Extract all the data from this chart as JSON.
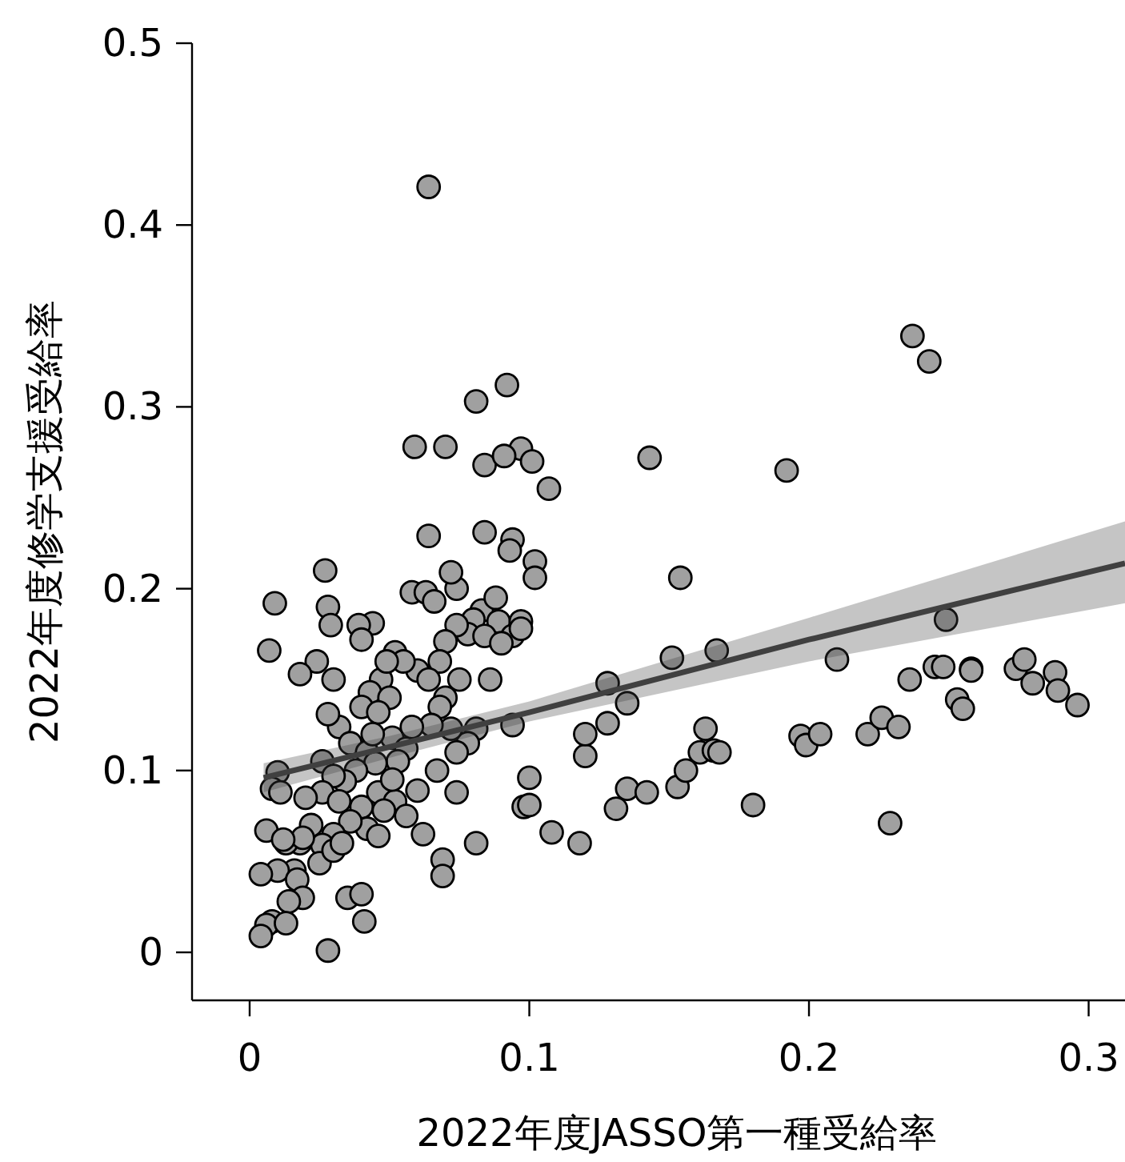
{
  "chart_data": {
    "type": "scatter",
    "xlabel": "2022年度JASSO第一種受給率",
    "ylabel": "2022年度修学支援受給率",
    "xlim": [
      -0.0206,
      0.313
    ],
    "ylim": [
      -0.0264,
      0.5
    ],
    "xticks": [
      0,
      0.1,
      0.2,
      0.3
    ],
    "yticks": [
      0,
      0.1,
      0.2,
      0.3,
      0.4,
      0.5
    ],
    "grid": false,
    "series": [
      {
        "marker": "circle",
        "color": "#a0a0a0",
        "x": [
          0.107,
          0.143,
          0.192,
          0.237,
          0.243,
          0.154,
          0.151,
          0.167,
          0.1,
          0.098,
          0.1,
          0.108,
          0.118,
          0.12,
          0.12,
          0.128,
          0.128,
          0.131,
          0.135,
          0.135,
          0.142,
          0.153,
          0.156,
          0.161,
          0.163,
          0.166,
          0.168,
          0.18,
          0.197,
          0.199,
          0.204,
          0.21,
          0.221,
          0.226,
          0.229,
          0.232,
          0.236,
          0.245,
          0.248,
          0.249,
          0.253,
          0.255,
          0.258,
          0.258,
          0.274,
          0.277,
          0.28,
          0.288,
          0.289,
          0.296,
          0.064,
          0.081,
          0.092,
          0.097,
          0.101,
          0.084,
          0.091,
          0.059,
          0.07,
          0.094,
          0.084,
          0.093,
          0.064,
          0.102,
          0.102,
          0.058,
          0.063,
          0.066,
          0.074,
          0.072,
          0.083,
          0.088,
          0.089,
          0.08,
          0.078,
          0.084,
          0.094,
          0.097,
          0.097,
          0.09,
          0.074,
          0.07,
          0.068,
          0.06,
          0.064,
          0.075,
          0.07,
          0.086,
          0.094,
          0.081,
          0.078,
          0.074,
          0.068,
          0.072,
          0.065,
          0.067,
          0.074,
          0.081,
          0.069,
          0.069,
          0.062,
          0.06,
          0.007,
          0.009,
          0.027,
          0.028,
          0.029,
          0.044,
          0.039,
          0.03,
          0.024,
          0.018,
          0.04,
          0.047,
          0.052,
          0.055,
          0.049,
          0.043,
          0.05,
          0.04,
          0.046,
          0.032,
          0.028,
          0.036,
          0.042,
          0.051,
          0.056,
          0.053,
          0.045,
          0.038,
          0.034,
          0.026,
          0.03,
          0.026,
          0.02,
          0.01,
          0.008,
          0.011,
          0.032,
          0.04,
          0.046,
          0.052,
          0.056,
          0.048,
          0.042,
          0.036,
          0.03,
          0.026,
          0.022,
          0.018,
          0.013,
          0.019,
          0.025,
          0.03,
          0.033,
          0.046,
          0.006,
          0.012,
          0.016,
          0.01,
          0.004,
          0.017,
          0.019,
          0.014,
          0.035,
          0.04,
          0.041,
          0.008,
          0.006,
          0.013,
          0.004,
          0.028,
          0.058,
          0.051,
          0.044
        ],
        "values": [
          0.255,
          0.272,
          0.265,
          0.339,
          0.325,
          0.206,
          0.162,
          0.166,
          0.096,
          0.08,
          0.081,
          0.066,
          0.06,
          0.108,
          0.12,
          0.126,
          0.148,
          0.079,
          0.09,
          0.137,
          0.088,
          0.091,
          0.1,
          0.11,
          0.123,
          0.111,
          0.11,
          0.081,
          0.119,
          0.114,
          0.12,
          0.161,
          0.12,
          0.129,
          0.071,
          0.124,
          0.15,
          0.157,
          0.157,
          0.183,
          0.139,
          0.134,
          0.156,
          0.155,
          0.156,
          0.161,
          0.148,
          0.154,
          0.144,
          0.136,
          0.421,
          0.303,
          0.312,
          0.277,
          0.27,
          0.268,
          0.273,
          0.278,
          0.278,
          0.227,
          0.231,
          0.221,
          0.229,
          0.215,
          0.206,
          0.198,
          0.198,
          0.193,
          0.2,
          0.209,
          0.188,
          0.195,
          0.182,
          0.183,
          0.175,
          0.174,
          0.174,
          0.182,
          0.178,
          0.17,
          0.18,
          0.171,
          0.16,
          0.155,
          0.15,
          0.15,
          0.14,
          0.15,
          0.125,
          0.123,
          0.115,
          0.11,
          0.135,
          0.123,
          0.125,
          0.1,
          0.088,
          0.06,
          0.051,
          0.042,
          0.065,
          0.089,
          0.166,
          0.192,
          0.21,
          0.19,
          0.18,
          0.181,
          0.18,
          0.15,
          0.16,
          0.153,
          0.172,
          0.15,
          0.165,
          0.16,
          0.16,
          0.143,
          0.14,
          0.135,
          0.132,
          0.124,
          0.131,
          0.115,
          0.11,
          0.118,
          0.112,
          0.105,
          0.104,
          0.1,
          0.094,
          0.105,
          0.097,
          0.088,
          0.085,
          0.099,
          0.09,
          0.088,
          0.083,
          0.08,
          0.088,
          0.083,
          0.075,
          0.078,
          0.068,
          0.072,
          0.065,
          0.059,
          0.07,
          0.06,
          0.06,
          0.063,
          0.049,
          0.056,
          0.06,
          0.064,
          0.067,
          0.062,
          0.045,
          0.045,
          0.043,
          0.04,
          0.03,
          0.028,
          0.03,
          0.032,
          0.017,
          0.017,
          0.015,
          0.016,
          0.009,
          0.001,
          0.124,
          0.095,
          0.12
        ]
      },
      {
        "type": "line",
        "marker": "none",
        "color": "#404040",
        "x": [
          0.005,
          0.05,
          0.1,
          0.2,
          0.313
        ],
        "values": [
          0.096,
          0.113,
          0.132,
          0.172,
          0.214
        ],
        "lower": [
          0.088,
          0.107,
          0.127,
          0.16,
          0.192
        ],
        "upper": [
          0.104,
          0.119,
          0.138,
          0.184,
          0.237
        ]
      }
    ]
  }
}
